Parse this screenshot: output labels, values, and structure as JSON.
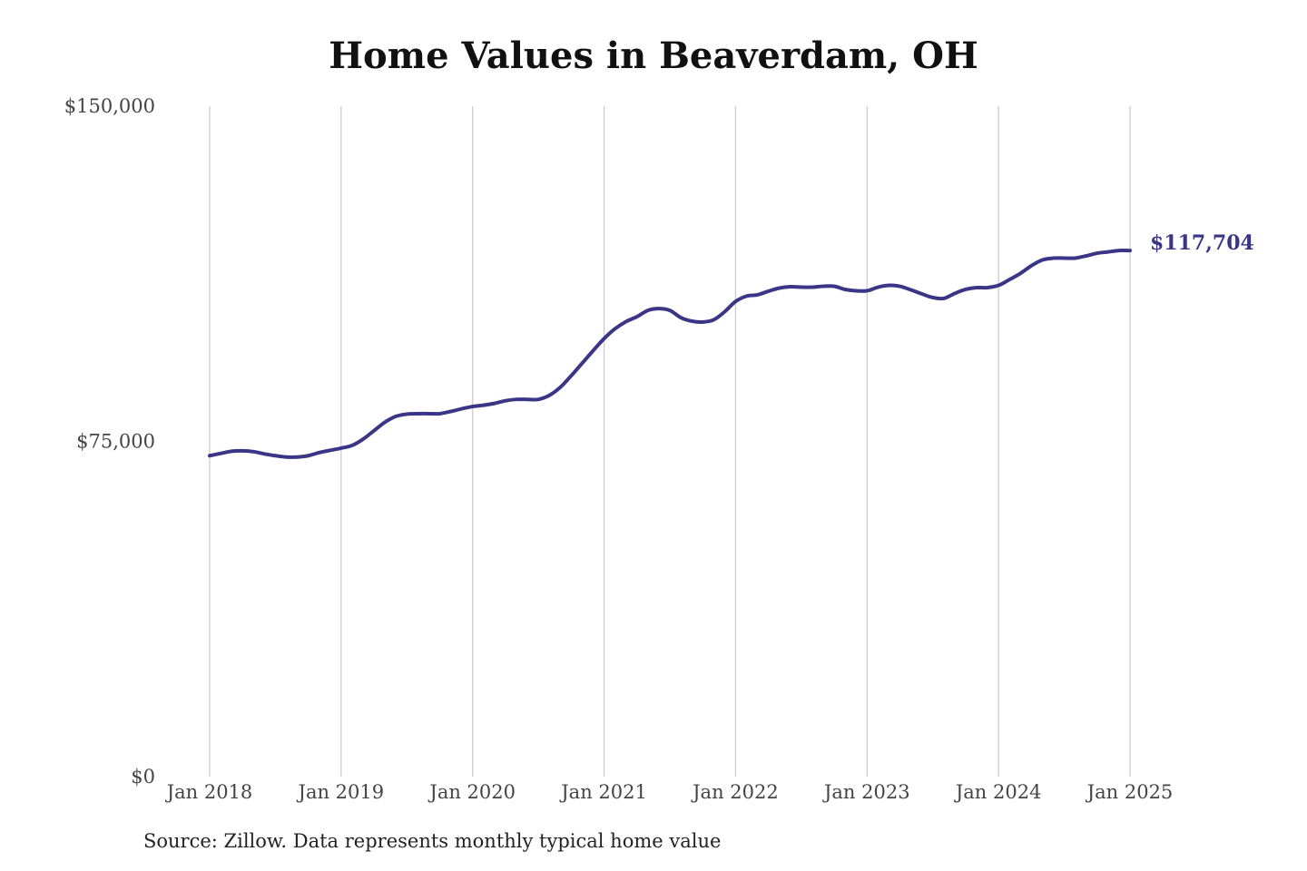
{
  "chart_data": {
    "type": "line",
    "title": "Home Values in Beaverdam, OH",
    "xlabel": "",
    "ylabel": "",
    "source": "Source: Zillow. Data represents monthly typical home value",
    "ylim": [
      0,
      150000
    ],
    "yticks": [
      {
        "value": 0,
        "label": "$0"
      },
      {
        "value": 75000,
        "label": "$75,000"
      },
      {
        "value": 150000,
        "label": "$150,000"
      }
    ],
    "xlim": [
      "2018-01",
      "2025-01"
    ],
    "xticks": [
      {
        "x": "2018-01",
        "label": "Jan 2018"
      },
      {
        "x": "2019-01",
        "label": "Jan 2019"
      },
      {
        "x": "2020-01",
        "label": "Jan 2020"
      },
      {
        "x": "2021-01",
        "label": "Jan 2021"
      },
      {
        "x": "2022-01",
        "label": "Jan 2022"
      },
      {
        "x": "2023-01",
        "label": "Jan 2023"
      },
      {
        "x": "2024-01",
        "label": "Jan 2024"
      },
      {
        "x": "2025-01",
        "label": "Jan 2025"
      }
    ],
    "grid": "vertical",
    "legend": "none",
    "line_color": "#3a3586",
    "end_label": "$117,704",
    "series": [
      {
        "x": [
          "2018-01",
          "2018-02",
          "2018-03",
          "2018-04",
          "2018-05",
          "2018-06",
          "2018-07",
          "2018-08",
          "2018-09",
          "2018-10",
          "2018-11",
          "2018-12",
          "2019-01",
          "2019-02",
          "2019-03",
          "2019-04",
          "2019-05",
          "2019-06",
          "2019-07",
          "2019-08",
          "2019-09",
          "2019-10",
          "2019-11",
          "2019-12",
          "2020-01",
          "2020-02",
          "2020-03",
          "2020-04",
          "2020-05",
          "2020-06",
          "2020-07",
          "2020-08",
          "2020-09",
          "2020-10",
          "2020-11",
          "2020-12",
          "2021-01",
          "2021-02",
          "2021-03",
          "2021-04",
          "2021-05",
          "2021-06",
          "2021-07",
          "2021-08",
          "2021-09",
          "2021-10",
          "2021-11",
          "2021-12",
          "2022-01",
          "2022-02",
          "2022-03",
          "2022-04",
          "2022-05",
          "2022-06",
          "2022-07",
          "2022-08",
          "2022-09",
          "2022-10",
          "2022-11",
          "2022-12",
          "2023-01",
          "2023-02",
          "2023-03",
          "2023-04",
          "2023-05",
          "2023-06",
          "2023-07",
          "2023-08",
          "2023-09",
          "2023-10",
          "2023-11",
          "2023-12",
          "2024-01",
          "2024-02",
          "2024-03",
          "2024-04",
          "2024-05",
          "2024-06",
          "2024-07",
          "2024-08",
          "2024-09",
          "2024-10",
          "2024-11",
          "2024-12",
          "2025-01"
        ],
        "values": [
          71800,
          72300,
          72800,
          72900,
          72700,
          72200,
          71800,
          71500,
          71500,
          71800,
          72500,
          73000,
          73500,
          74100,
          75500,
          77400,
          79300,
          80600,
          81100,
          81200,
          81200,
          81200,
          81700,
          82300,
          82800,
          83100,
          83500,
          84100,
          84400,
          84400,
          84400,
          85300,
          87100,
          89700,
          92500,
          95300,
          98000,
          100200,
          101800,
          102900,
          104300,
          104700,
          104300,
          102700,
          101900,
          101700,
          102200,
          104000,
          106300,
          107500,
          107800,
          108600,
          109300,
          109600,
          109500,
          109500,
          109700,
          109700,
          109000,
          108700,
          108700,
          109500,
          109900,
          109700,
          108900,
          108000,
          107200,
          107000,
          108100,
          109000,
          109400,
          109400,
          109900,
          111200,
          112600,
          114300,
          115600,
          116000,
          116000,
          116000,
          116500,
          117100,
          117400,
          117704,
          117704
        ]
      }
    ]
  }
}
